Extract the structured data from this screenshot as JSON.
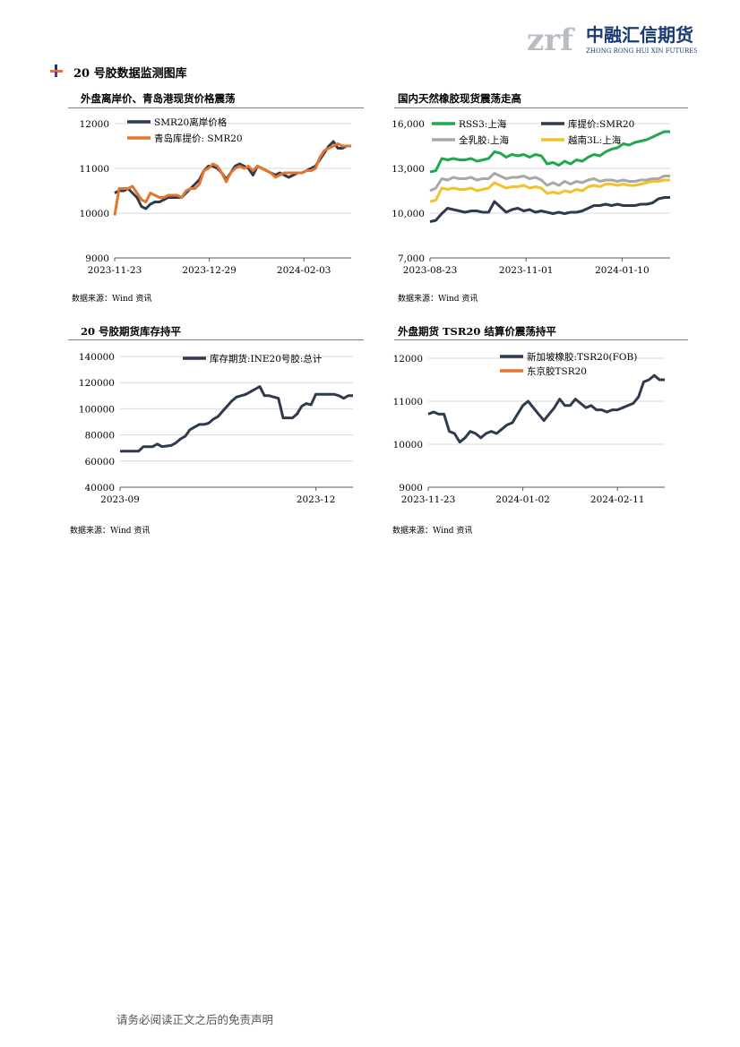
{
  "header": {
    "logo_letters": "zrf",
    "logo_cn": "中融汇信期货",
    "logo_en": "ZHONG RONG HUI XIN FUTURES"
  },
  "section": {
    "title": "20 号胶数据监测图库"
  },
  "charts": [
    {
      "title": "外盘离岸价、青岛港现货价格震荡",
      "source": "数据来源：Wind 资讯",
      "chart_data": {
        "type": "line",
        "x_ticks": [
          "2023-11-23",
          "2023-12-29",
          "2024-02-03"
        ],
        "y_ticks": [
          "9000",
          "10000",
          "11000",
          "12000"
        ],
        "ylim": [
          9000,
          12000
        ],
        "legend": "top-left",
        "series": [
          {
            "name": "SMR20离岸价格",
            "color": "#2e3a4e",
            "values": [
              10450,
              10500,
              10500,
              10550,
              10450,
              10350,
              10150,
              10100,
              10200,
              10250,
              10250,
              10300,
              10350,
              10350,
              10350,
              10350,
              10450,
              10550,
              10650,
              10750,
              10950,
              11050,
              11050,
              11000,
              10900,
              10750,
              10900,
              11050,
              11100,
              11050,
              11000,
              10850,
              11050,
              11000,
              10950,
              10900,
              10850,
              10900,
              10850,
              10800,
              10850,
              10900,
              10900,
              10950,
              11000,
              11050,
              11200,
              11350,
              11500,
              11600,
              11450,
              11450,
              11500,
              11500
            ]
          },
          {
            "name": "青岛库提价: SMR20",
            "color": "#e2762f",
            "values": [
              9950,
              10550,
              10550,
              10550,
              10600,
              10450,
              10300,
              10250,
              10450,
              10400,
              10350,
              10350,
              10400,
              10400,
              10400,
              10350,
              10500,
              10550,
              10550,
              10650,
              10950,
              11000,
              11100,
              11050,
              10900,
              10700,
              10900,
              11000,
              11050,
              11000,
              11050,
              10950,
              11050,
              11000,
              10950,
              10900,
              10800,
              10850,
              10900,
              10900,
              10900,
              10900,
              10900,
              10950,
              10950,
              11000,
              11250,
              11400,
              11450,
              11500,
              11550,
              11500,
              11500,
              11500
            ]
          }
        ]
      }
    },
    {
      "title": "国内天然橡胶现货震荡走高",
      "source": "数据来源：Wind 资讯",
      "chart_data": {
        "type": "line",
        "x_ticks": [
          "2023-08-23",
          "2023-11-01",
          "2024-01-10"
        ],
        "y_ticks": [
          "7,000",
          "10,000",
          "13,000",
          "16,000"
        ],
        "ylim": [
          7000,
          17000
        ],
        "legend": "top",
        "series": [
          {
            "name": "RSS3:上海",
            "color": "#1fa84f",
            "values": [
              13400,
              13500,
              14400,
              14300,
              14400,
              14300,
              14300,
              14400,
              14200,
              14300,
              14400,
              14900,
              14800,
              14500,
              14700,
              14600,
              14700,
              14500,
              14700,
              14600,
              14000,
              14100,
              13900,
              14200,
              14000,
              14300,
              14200,
              14500,
              14700,
              14600,
              14900,
              15100,
              15200,
              15500,
              15400,
              15600,
              15700,
              15800,
              16000,
              16200,
              16400,
              16400
            ]
          },
          {
            "name": "库提价:SMR20",
            "color": "#2e3a4e",
            "values": [
              9700,
              9800,
              10300,
              10700,
              10600,
              10500,
              10400,
              10500,
              10500,
              10400,
              10400,
              11200,
              10800,
              10400,
              10600,
              10700,
              10500,
              10600,
              10400,
              10500,
              10400,
              10300,
              10400,
              10300,
              10400,
              10400,
              10500,
              10700,
              10900,
              10900,
              11000,
              10900,
              11000,
              10900,
              10900,
              10900,
              11000,
              11000,
              11100,
              11400,
              11500,
              11500
            ]
          },
          {
            "name": "全乳胶:上海",
            "color": "#a8a8a8",
            "values": [
              12000,
              12200,
              12900,
              12800,
              13000,
              12900,
              12900,
              13000,
              12800,
              12900,
              12900,
              13300,
              13100,
              12900,
              13000,
              13000,
              13100,
              12900,
              13000,
              12800,
              12400,
              12600,
              12400,
              12700,
              12500,
              12700,
              12600,
              12800,
              12900,
              12700,
              12800,
              12800,
              12700,
              12800,
              12700,
              12700,
              12800,
              12800,
              12900,
              12900,
              13100,
              13100
            ]
          },
          {
            "name": "越南3L:上海",
            "color": "#f2c12e",
            "values": [
              11200,
              11300,
              12200,
              12100,
              12200,
              12100,
              12100,
              12200,
              12000,
              12100,
              12200,
              12600,
              12400,
              12200,
              12300,
              12300,
              12400,
              12200,
              12300,
              12200,
              11800,
              11900,
              11800,
              12000,
              11900,
              12100,
              12000,
              12300,
              12400,
              12300,
              12500,
              12500,
              12400,
              12500,
              12400,
              12400,
              12500,
              12600,
              12700,
              12700,
              12800,
              12800
            ]
          }
        ]
      }
    },
    {
      "title": "20 号胶期货库存持平",
      "source": "数据来源：Wind 资讯",
      "chart_data": {
        "type": "line",
        "x_ticks": [
          "2023-09",
          "2023-12"
        ],
        "y_ticks": [
          "40000",
          "60000",
          "80000",
          "100000",
          "120000",
          "140000"
        ],
        "ylim": [
          40000,
          140000
        ],
        "legend": "top-right",
        "series": [
          {
            "name": "库存期货:INE20号胶:总计",
            "color": "#2e3a4e",
            "values": [
              67600,
              67600,
              67600,
              67600,
              67600,
              71000,
              71000,
              71000,
              73000,
              71000,
              71500,
              72000,
              74000,
              77000,
              79000,
              84000,
              86000,
              88000,
              88000,
              89000,
              92000,
              94000,
              98000,
              102000,
              106000,
              109000,
              110000,
              111000,
              113000,
              115000,
              117000,
              110000,
              110000,
              109000,
              108000,
              93000,
              93000,
              93000,
              96000,
              102000,
              104000,
              103000,
              111000,
              111000,
              111000,
              111000,
              111000,
              110000,
              108000,
              110000,
              110000
            ]
          }
        ]
      }
    },
    {
      "title": "外盘期货 TSR20 结算价震荡持平",
      "source": "数据来源：Wind 资讯",
      "chart_data": {
        "type": "line",
        "x_ticks": [
          "2023-11-23",
          "2024-01-02",
          "2024-02-11"
        ],
        "y_ticks": [
          "9000",
          "10000",
          "11000",
          "12000"
        ],
        "ylim": [
          9000,
          12000
        ],
        "legend": "top-right",
        "series": [
          {
            "name": "新加坡橡胶:TSR20(FOB)",
            "color": "#2e3a4e",
            "values": [
              10700,
              10750,
              10700,
              10700,
              10300,
              10250,
              10050,
              10150,
              10300,
              10250,
              10150,
              10250,
              10300,
              10250,
              10350,
              10450,
              10500,
              10700,
              10900,
              11000,
              10850,
              10700,
              10550,
              10700,
              10850,
              11050,
              10900,
              10900,
              11050,
              10950,
              10850,
              10900,
              10800,
              10800,
              10750,
              10800,
              10800,
              10850,
              10900,
              10950,
              11100,
              11450,
              11500,
              11600,
              11500,
              11500
            ]
          },
          {
            "name": "东京胶TSR20",
            "color": "#e2762f",
            "values": []
          }
        ]
      }
    }
  ],
  "footer": {
    "disclaimer": "请务必阅读正文之后的免责声明"
  }
}
